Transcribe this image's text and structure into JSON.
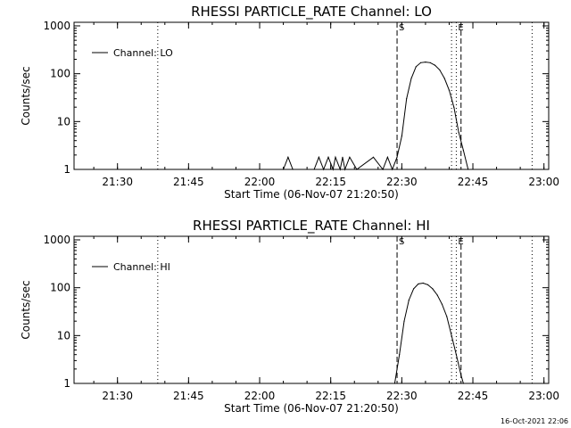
{
  "footer": {
    "timestamp": "16-Oct-2021 22:06"
  },
  "chart_data": [
    {
      "type": "line",
      "title": "RHESSI PARTICLE_RATE Channel: LO",
      "xlabel": "Start Time (06-Nov-07 21:20:50)",
      "ylabel": "Counts/sec",
      "xlim": [
        "21:20:50",
        "23:01:00"
      ],
      "ylim": [
        1,
        1000
      ],
      "yscale": "log",
      "grid": false,
      "legend_position": "top-left",
      "x_ticks": [
        "21:30",
        "21:45",
        "22:00",
        "22:15",
        "22:30",
        "22:45",
        "23:00"
      ],
      "y_ticks": [
        "1",
        "10",
        "100",
        "1000"
      ],
      "series": [
        {
          "name": "Channel: LO",
          "x": [
            "22:05:00",
            "22:06:00",
            "22:07:00",
            "22:11:30",
            "22:12:30",
            "22:13:30",
            "22:14:30",
            "22:15:30",
            "22:16:00",
            "22:17:00",
            "22:17:30",
            "22:18:00",
            "22:19:00",
            "22:20:30",
            "22:24:00",
            "22:26:00",
            "22:27:00",
            "22:28:00",
            "22:29:00",
            "22:30:00",
            "22:31:00",
            "22:32:00",
            "22:33:00",
            "22:34:00",
            "22:35:00",
            "22:36:00",
            "22:37:00",
            "22:38:00",
            "22:39:00",
            "22:40:00",
            "22:41:00",
            "22:42:00",
            "22:43:00",
            "22:44:00"
          ],
          "y": [
            1,
            1.8,
            1,
            1,
            1.8,
            1,
            1.8,
            1,
            1.8,
            1,
            1.8,
            1,
            1.8,
            1,
            1.8,
            1,
            1.8,
            1,
            1.8,
            5,
            30,
            80,
            140,
            170,
            175,
            170,
            150,
            120,
            80,
            45,
            20,
            6,
            2.5,
            1
          ]
        }
      ],
      "markers": [
        {
          "time": "21:38:30",
          "style": "dotted",
          "label": ""
        },
        {
          "time": "22:29:00",
          "style": "dashed",
          "label": "S"
        },
        {
          "time": "22:40:30",
          "style": "dotted",
          "label": ""
        },
        {
          "time": "22:41:30",
          "style": "dotted",
          "label": "E"
        },
        {
          "time": "22:42:30",
          "style": "dashed",
          "label": ""
        },
        {
          "time": "22:57:30",
          "style": "dotted",
          "label": ""
        }
      ]
    },
    {
      "type": "line",
      "title": "RHESSI PARTICLE_RATE Channel: HI",
      "xlabel": "Start Time (06-Nov-07 21:20:50)",
      "ylabel": "Counts/sec",
      "xlim": [
        "21:20:50",
        "23:01:00"
      ],
      "ylim": [
        1,
        1000
      ],
      "yscale": "log",
      "grid": false,
      "legend_position": "top-left",
      "x_ticks": [
        "21:30",
        "21:45",
        "22:00",
        "22:15",
        "22:30",
        "22:45",
        "23:00"
      ],
      "y_ticks": [
        "1",
        "10",
        "100",
        "1000"
      ],
      "series": [
        {
          "name": "Channel: HI",
          "x": [
            "22:28:30",
            "22:29:30",
            "22:30:30",
            "22:31:30",
            "22:32:30",
            "22:33:30",
            "22:34:30",
            "22:35:30",
            "22:36:30",
            "22:37:30",
            "22:38:30",
            "22:39:30",
            "22:40:30",
            "22:41:30",
            "22:42:30",
            "22:43:00"
          ],
          "y": [
            1,
            4,
            20,
            55,
            95,
            120,
            125,
            115,
            95,
            70,
            45,
            25,
            10,
            4,
            1.5,
            1
          ]
        }
      ],
      "markers": [
        {
          "time": "21:38:30",
          "style": "dotted",
          "label": ""
        },
        {
          "time": "22:29:00",
          "style": "dashed",
          "label": "S"
        },
        {
          "time": "22:40:30",
          "style": "dotted",
          "label": ""
        },
        {
          "time": "22:41:30",
          "style": "dotted",
          "label": "E"
        },
        {
          "time": "22:42:30",
          "style": "dashed",
          "label": ""
        },
        {
          "time": "22:57:30",
          "style": "dotted",
          "label": ""
        }
      ]
    }
  ]
}
